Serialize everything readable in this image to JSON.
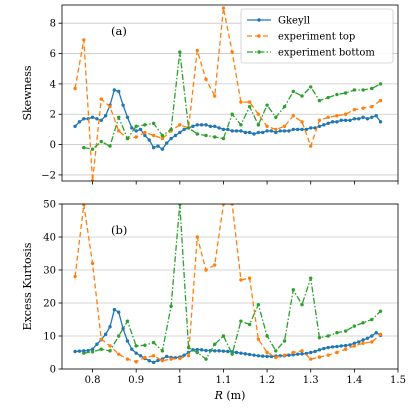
{
  "colors": {
    "gkeyll": "#1f77b4",
    "top": "#ff7f0e",
    "bottom": "#2ca02c",
    "grid": "#c8c8c8"
  },
  "chart_data": [
    {
      "type": "line",
      "panel_label": "(a)",
      "ylabel": "Skewness",
      "xlabel": "",
      "xlim": [
        0.73,
        1.5
      ],
      "ylim": [
        -2.4,
        9.2
      ],
      "xticks": [
        0.8,
        0.9,
        1.0,
        1.1,
        1.2,
        1.3,
        1.4,
        1.5
      ],
      "show_xtick_labels": false,
      "yticks": [
        -2,
        0,
        2,
        4,
        6,
        8
      ],
      "grid": "horizontal",
      "legend": {
        "placement": "top-right"
      },
      "series": [
        {
          "name": "Gkeyll",
          "style": "solid",
          "marker": "circle",
          "color_key": "gkeyll",
          "x": [
            0.76,
            0.77,
            0.78,
            0.79,
            0.8,
            0.81,
            0.82,
            0.83,
            0.84,
            0.85,
            0.86,
            0.87,
            0.88,
            0.89,
            0.9,
            0.91,
            0.92,
            0.93,
            0.94,
            0.95,
            0.96,
            0.97,
            0.98,
            0.99,
            1.0,
            1.01,
            1.02,
            1.03,
            1.04,
            1.05,
            1.06,
            1.07,
            1.08,
            1.09,
            1.1,
            1.11,
            1.12,
            1.13,
            1.14,
            1.15,
            1.16,
            1.17,
            1.18,
            1.19,
            1.2,
            1.21,
            1.22,
            1.23,
            1.24,
            1.25,
            1.26,
            1.27,
            1.28,
            1.29,
            1.3,
            1.31,
            1.32,
            1.33,
            1.34,
            1.35,
            1.36,
            1.37,
            1.38,
            1.39,
            1.4,
            1.41,
            1.42,
            1.43,
            1.44,
            1.45,
            1.46
          ],
          "y": [
            1.2,
            1.5,
            1.7,
            1.7,
            1.8,
            1.7,
            1.6,
            1.9,
            2.6,
            3.6,
            3.5,
            2.6,
            1.8,
            1.1,
            0.9,
            1.0,
            0.6,
            0.3,
            -0.2,
            -0.1,
            -0.3,
            0.1,
            0.4,
            0.6,
            0.8,
            1.0,
            1.1,
            1.2,
            1.3,
            1.3,
            1.3,
            1.2,
            1.2,
            1.1,
            1.0,
            1.0,
            0.9,
            0.9,
            0.9,
            0.8,
            0.8,
            0.7,
            0.8,
            0.8,
            0.9,
            0.9,
            0.8,
            0.9,
            0.9,
            0.9,
            1.0,
            1.0,
            1.0,
            1.0,
            1.1,
            1.1,
            1.2,
            1.3,
            1.4,
            1.5,
            1.5,
            1.6,
            1.6,
            1.6,
            1.7,
            1.7,
            1.8,
            1.7,
            1.8,
            1.9,
            1.5
          ]
        },
        {
          "name": "experiment top",
          "style": "dashed",
          "marker": "circle",
          "color_key": "top",
          "x": [
            0.76,
            0.78,
            0.8,
            0.82,
            0.84,
            0.86,
            0.88,
            0.9,
            0.92,
            0.94,
            0.96,
            0.98,
            1.0,
            1.02,
            1.04,
            1.06,
            1.08,
            1.1,
            1.12,
            1.14,
            1.16,
            1.18,
            1.2,
            1.22,
            1.24,
            1.26,
            1.28,
            1.3,
            1.32,
            1.34,
            1.36,
            1.38,
            1.4,
            1.42,
            1.44,
            1.46
          ],
          "y": [
            3.7,
            6.9,
            -2.4,
            3.0,
            2.5,
            0.9,
            0.4,
            0.5,
            0.8,
            0.6,
            0.4,
            0.9,
            1.3,
            1.1,
            6.2,
            4.3,
            3.2,
            9.0,
            6.1,
            2.8,
            2.8,
            2.0,
            1.2,
            1.0,
            1.2,
            1.9,
            1.5,
            -0.1,
            1.6,
            1.8,
            1.9,
            2.0,
            2.3,
            2.4,
            2.5,
            2.9
          ]
        },
        {
          "name": "experiment bottom",
          "style": "dashdot",
          "marker": "circle",
          "color_key": "bottom",
          "x": [
            0.78,
            0.8,
            0.82,
            0.84,
            0.86,
            0.88,
            0.9,
            0.92,
            0.94,
            0.96,
            0.98,
            1.0,
            1.02,
            1.04,
            1.06,
            1.08,
            1.1,
            1.12,
            1.14,
            1.16,
            1.18,
            1.2,
            1.22,
            1.24,
            1.26,
            1.28,
            1.3,
            1.32,
            1.34,
            1.36,
            1.38,
            1.4,
            1.42,
            1.44,
            1.46
          ],
          "y": [
            -0.2,
            -0.3,
            0.2,
            -0.1,
            1.8,
            0.4,
            1.2,
            1.3,
            1.4,
            0.6,
            1.0,
            6.1,
            1.1,
            0.7,
            0.6,
            0.5,
            0.4,
            2.0,
            1.3,
            2.5,
            1.3,
            2.6,
            1.8,
            2.5,
            3.5,
            3.2,
            3.8,
            2.9,
            3.1,
            3.3,
            3.4,
            3.6,
            3.6,
            3.7,
            4.0
          ]
        }
      ]
    },
    {
      "type": "line",
      "panel_label": "(b)",
      "ylabel": "Excess Kurtosis",
      "xlabel": "R (m)",
      "xlim": [
        0.73,
        1.5
      ],
      "ylim": [
        0,
        50
      ],
      "xticks": [
        0.8,
        0.9,
        1.0,
        1.1,
        1.2,
        1.3,
        1.4,
        1.5
      ],
      "show_xtick_labels": true,
      "yticks": [
        0,
        10,
        20,
        30,
        40,
        50
      ],
      "grid": "horizontal",
      "series": [
        {
          "name": "Gkeyll",
          "style": "solid",
          "marker": "circle",
          "color_key": "gkeyll",
          "x": [
            0.76,
            0.77,
            0.78,
            0.79,
            0.8,
            0.81,
            0.82,
            0.83,
            0.84,
            0.85,
            0.86,
            0.87,
            0.88,
            0.89,
            0.9,
            0.91,
            0.92,
            0.93,
            0.94,
            0.95,
            0.96,
            0.97,
            0.98,
            0.99,
            1.0,
            1.01,
            1.02,
            1.03,
            1.04,
            1.05,
            1.06,
            1.07,
            1.08,
            1.09,
            1.1,
            1.11,
            1.12,
            1.13,
            1.14,
            1.15,
            1.16,
            1.17,
            1.18,
            1.19,
            1.2,
            1.21,
            1.22,
            1.23,
            1.24,
            1.25,
            1.26,
            1.27,
            1.28,
            1.29,
            1.3,
            1.31,
            1.32,
            1.33,
            1.34,
            1.35,
            1.36,
            1.37,
            1.38,
            1.39,
            1.4,
            1.41,
            1.42,
            1.43,
            1.44,
            1.45,
            1.46
          ],
          "y": [
            5.3,
            5.4,
            5.5,
            5.6,
            6.0,
            7.5,
            8.9,
            10.5,
            12.8,
            18.0,
            17.2,
            12.2,
            8.5,
            6.0,
            4.8,
            4.0,
            3.2,
            2.5,
            2.0,
            2.6,
            3.0,
            3.8,
            3.5,
            3.4,
            3.6,
            4.2,
            5.0,
            5.8,
            5.9,
            5.8,
            5.6,
            5.6,
            5.5,
            5.5,
            5.4,
            5.3,
            5.2,
            5.0,
            4.8,
            4.6,
            4.4,
            4.2,
            4.0,
            3.9,
            3.8,
            3.8,
            3.9,
            4.0,
            4.0,
            4.2,
            4.3,
            4.5,
            4.6,
            4.7,
            5.0,
            5.3,
            5.8,
            6.2,
            6.5,
            6.7,
            6.8,
            7.0,
            7.1,
            7.3,
            7.8,
            8.2,
            8.8,
            9.3,
            10.0,
            11.0,
            10.2
          ]
        },
        {
          "name": "experiment top",
          "style": "dashed",
          "marker": "circle",
          "color_key": "top",
          "x": [
            0.76,
            0.78,
            0.8,
            0.82,
            0.84,
            0.86,
            0.88,
            0.9,
            0.92,
            0.94,
            0.96,
            0.98,
            1.0,
            1.02,
            1.04,
            1.06,
            1.08,
            1.1,
            1.12,
            1.14,
            1.16,
            1.18,
            1.2,
            1.22,
            1.24,
            1.26,
            1.28,
            1.3,
            1.32,
            1.34,
            1.36,
            1.38,
            1.4,
            1.42,
            1.44,
            1.46
          ],
          "y": [
            28.0,
            49.8,
            32.0,
            9.0,
            7.0,
            4.5,
            3.0,
            2.2,
            3.5,
            4.0,
            2.5,
            3.0,
            3.2,
            4.0,
            40.0,
            30.0,
            31.5,
            50.0,
            50.0,
            27.0,
            27.5,
            9.0,
            5.0,
            3.5,
            4.2,
            5.0,
            5.5,
            3.0,
            3.6,
            4.2,
            5.0,
            6.0,
            7.0,
            7.8,
            8.2,
            10.5
          ]
        },
        {
          "name": "experiment bottom",
          "style": "dashdot",
          "marker": "circle",
          "color_key": "bottom",
          "x": [
            0.78,
            0.8,
            0.82,
            0.84,
            0.86,
            0.88,
            0.9,
            0.92,
            0.94,
            0.96,
            0.98,
            1.0,
            1.02,
            1.04,
            1.06,
            1.08,
            1.1,
            1.12,
            1.14,
            1.16,
            1.18,
            1.2,
            1.22,
            1.24,
            1.26,
            1.28,
            1.3,
            1.32,
            1.34,
            1.36,
            1.38,
            1.4,
            1.42,
            1.44,
            1.46
          ],
          "y": [
            4.8,
            5.2,
            6.0,
            5.5,
            10.0,
            14.5,
            7.0,
            7.2,
            8.0,
            5.5,
            19.0,
            50.0,
            6.5,
            5.0,
            3.0,
            7.5,
            10.0,
            4.5,
            14.5,
            13.5,
            19.5,
            10.0,
            5.5,
            8.5,
            24.0,
            19.5,
            27.5,
            9.5,
            10.0,
            11.0,
            11.5,
            13.0,
            14.0,
            15.0,
            17.5
          ]
        }
      ]
    }
  ]
}
